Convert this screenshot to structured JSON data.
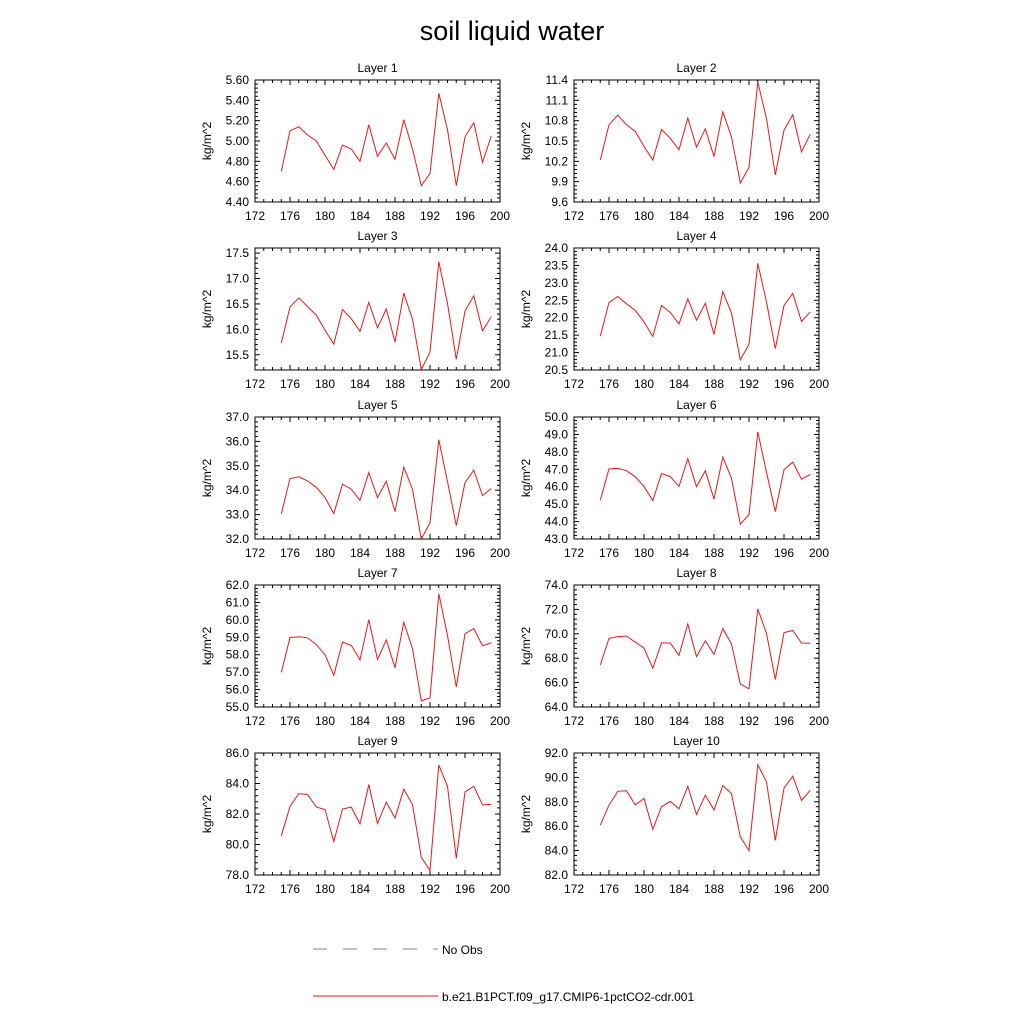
{
  "figure": {
    "title": "soil liquid water",
    "legend": [
      {
        "label": "No Obs",
        "color": "#7b7bd0",
        "style": "dashed"
      },
      {
        "label": "b.e21.B1PCT.f09_g17.CMIP6-1pctCO2-cdr.001",
        "color": "#e61919",
        "style": "solid"
      }
    ]
  },
  "chart_data": [
    {
      "type": "line",
      "title": "Layer 1",
      "ylabel": "kg/m^2",
      "xlim": [
        172,
        200
      ],
      "ylim": [
        4.4,
        5.6
      ],
      "xticks": [
        "172",
        "176",
        "180",
        "184",
        "188",
        "192",
        "196",
        "200"
      ],
      "yticks": [
        "4.40",
        "4.60",
        "4.80",
        "5.00",
        "5.20",
        "5.40",
        "5.60"
      ],
      "ytick_values": [
        4.4,
        4.6,
        4.8,
        5.0,
        5.2,
        5.4,
        5.6
      ],
      "x": [
        175,
        176,
        177,
        178,
        179,
        180,
        181,
        182,
        183,
        184,
        185,
        186,
        187,
        188,
        189,
        190,
        191,
        192,
        193,
        194,
        195,
        196,
        197,
        198,
        199
      ],
      "series": [
        {
          "name": "b.e21.B1PCT.f09_g17.CMIP6-1pctCO2-cdr.001",
          "values": [
            4.7,
            5.1,
            5.14,
            5.06,
            5.0,
            4.86,
            4.72,
            4.96,
            4.92,
            4.8,
            5.16,
            4.85,
            4.98,
            4.82,
            5.21,
            4.92,
            4.56,
            4.68,
            5.47,
            5.11,
            4.56,
            5.04,
            5.18,
            4.79,
            5.05
          ]
        }
      ]
    },
    {
      "type": "line",
      "title": "Layer 2",
      "ylabel": "kg/m^2",
      "xlim": [
        172,
        200
      ],
      "ylim": [
        9.6,
        11.4
      ],
      "xticks": [
        "172",
        "176",
        "180",
        "184",
        "188",
        "192",
        "196",
        "200"
      ],
      "yticks": [
        "9.6",
        "9.9",
        "10.2",
        "10.5",
        "10.8",
        "11.1",
        "11.4"
      ],
      "ytick_values": [
        9.6,
        9.9,
        10.2,
        10.5,
        10.8,
        11.1,
        11.4
      ],
      "x": [
        175,
        176,
        177,
        178,
        179,
        180,
        181,
        182,
        183,
        184,
        185,
        186,
        187,
        188,
        189,
        190,
        191,
        192,
        193,
        194,
        195,
        196,
        197,
        198,
        199
      ],
      "series": [
        {
          "name": "b.e21.B1PCT.f09_g17.CMIP6-1pctCO2-cdr.001",
          "values": [
            10.22,
            10.74,
            10.88,
            10.74,
            10.64,
            10.42,
            10.22,
            10.67,
            10.54,
            10.37,
            10.84,
            10.41,
            10.68,
            10.27,
            10.93,
            10.56,
            9.88,
            10.11,
            11.37,
            10.83,
            10.0,
            10.66,
            10.89,
            10.34,
            10.6
          ]
        }
      ]
    },
    {
      "type": "line",
      "title": "Layer 3",
      "ylabel": "kg/m^2",
      "xlim": [
        172,
        200
      ],
      "ylim": [
        15.2,
        17.6
      ],
      "xticks": [
        "172",
        "176",
        "180",
        "184",
        "188",
        "192",
        "196",
        "200"
      ],
      "yticks": [
        "15.5",
        "16.0",
        "16.5",
        "17.0",
        "17.5"
      ],
      "ytick_values": [
        15.5,
        16.0,
        16.5,
        17.0,
        17.5
      ],
      "x": [
        175,
        176,
        177,
        178,
        179,
        180,
        181,
        182,
        183,
        184,
        185,
        186,
        187,
        188,
        189,
        190,
        191,
        192,
        193,
        194,
        195,
        196,
        197,
        198,
        199
      ],
      "series": [
        {
          "name": "b.e21.B1PCT.f09_g17.CMIP6-1pctCO2-cdr.001",
          "values": [
            15.73,
            16.44,
            16.62,
            16.45,
            16.28,
            15.98,
            15.71,
            16.39,
            16.21,
            15.96,
            16.53,
            16.03,
            16.4,
            15.75,
            16.71,
            16.2,
            15.21,
            15.55,
            17.33,
            16.51,
            15.41,
            16.36,
            16.66,
            15.97,
            16.25
          ]
        }
      ]
    },
    {
      "type": "line",
      "title": "Layer 4",
      "ylabel": "kg/m^2",
      "xlim": [
        172,
        200
      ],
      "ylim": [
        20.5,
        24.0
      ],
      "xticks": [
        "172",
        "176",
        "180",
        "184",
        "188",
        "192",
        "196",
        "200"
      ],
      "yticks": [
        "20.5",
        "21.0",
        "21.5",
        "22.0",
        "22.5",
        "23.0",
        "23.5",
        "24.0"
      ],
      "ytick_values": [
        20.5,
        21.0,
        21.5,
        22.0,
        22.5,
        23.0,
        23.5,
        24.0
      ],
      "x": [
        175,
        176,
        177,
        178,
        179,
        180,
        181,
        182,
        183,
        184,
        185,
        186,
        187,
        188,
        189,
        190,
        191,
        192,
        193,
        194,
        195,
        196,
        197,
        198,
        199
      ],
      "series": [
        {
          "name": "b.e21.B1PCT.f09_g17.CMIP6-1pctCO2-cdr.001",
          "values": [
            21.47,
            22.44,
            22.61,
            22.4,
            22.21,
            21.88,
            21.46,
            22.35,
            22.15,
            21.82,
            22.54,
            21.93,
            22.41,
            21.52,
            22.75,
            22.13,
            20.79,
            21.24,
            23.56,
            22.45,
            21.11,
            22.35,
            22.7,
            21.89,
            22.17
          ]
        }
      ]
    },
    {
      "type": "line",
      "title": "Layer 5",
      "ylabel": "kg/m^2",
      "xlim": [
        172,
        200
      ],
      "ylim": [
        32.0,
        37.0
      ],
      "xticks": [
        "172",
        "176",
        "180",
        "184",
        "188",
        "192",
        "196",
        "200"
      ],
      "yticks": [
        "32.0",
        "33.0",
        "34.0",
        "35.0",
        "36.0",
        "37.0"
      ],
      "ytick_values": [
        32,
        33,
        34,
        35,
        36,
        37
      ],
      "x": [
        175,
        176,
        177,
        178,
        179,
        180,
        181,
        182,
        183,
        184,
        185,
        186,
        187,
        188,
        189,
        190,
        191,
        192,
        193,
        194,
        195,
        196,
        197,
        198,
        199
      ],
      "series": [
        {
          "name": "b.e21.B1PCT.f09_g17.CMIP6-1pctCO2-cdr.001",
          "values": [
            33.03,
            34.48,
            34.55,
            34.38,
            34.12,
            33.7,
            33.04,
            34.25,
            34.04,
            33.58,
            34.72,
            33.7,
            34.37,
            33.12,
            34.95,
            34.03,
            32.0,
            32.67,
            36.07,
            34.35,
            32.55,
            34.31,
            34.82,
            33.78,
            34.07
          ]
        }
      ]
    },
    {
      "type": "line",
      "title": "Layer 6",
      "ylabel": "kg/m^2",
      "xlim": [
        172,
        200
      ],
      "ylim": [
        43.0,
        50.0
      ],
      "xticks": [
        "172",
        "176",
        "180",
        "184",
        "188",
        "192",
        "196",
        "200"
      ],
      "yticks": [
        "43.0",
        "44.0",
        "45.0",
        "46.0",
        "47.0",
        "48.0",
        "49.0",
        "50.0"
      ],
      "ytick_values": [
        43,
        44,
        45,
        46,
        47,
        48,
        49,
        50
      ],
      "x": [
        175,
        176,
        177,
        178,
        179,
        180,
        181,
        182,
        183,
        184,
        185,
        186,
        187,
        188,
        189,
        190,
        191,
        192,
        193,
        194,
        195,
        196,
        197,
        198,
        199
      ],
      "series": [
        {
          "name": "b.e21.B1PCT.f09_g17.CMIP6-1pctCO2-cdr.001",
          "values": [
            45.22,
            47.02,
            47.05,
            46.92,
            46.57,
            46.01,
            45.2,
            46.76,
            46.58,
            46.02,
            47.61,
            46.0,
            46.92,
            45.29,
            47.7,
            46.48,
            43.85,
            44.4,
            49.15,
            46.82,
            44.57,
            46.97,
            47.41,
            46.43,
            46.7
          ]
        }
      ]
    },
    {
      "type": "line",
      "title": "Layer 7",
      "ylabel": "kg/m^2",
      "xlim": [
        172,
        200
      ],
      "ylim": [
        55.0,
        62.0
      ],
      "xticks": [
        "172",
        "176",
        "180",
        "184",
        "188",
        "192",
        "196",
        "200"
      ],
      "yticks": [
        "55.0",
        "56.0",
        "57.0",
        "58.0",
        "59.0",
        "60.0",
        "61.0",
        "62.0"
      ],
      "ytick_values": [
        55,
        56,
        57,
        58,
        59,
        60,
        61,
        62
      ],
      "x": [
        175,
        176,
        177,
        178,
        179,
        180,
        181,
        182,
        183,
        184,
        185,
        186,
        187,
        188,
        189,
        190,
        191,
        192,
        193,
        194,
        195,
        196,
        197,
        198,
        199
      ],
      "series": [
        {
          "name": "b.e21.B1PCT.f09_g17.CMIP6-1pctCO2-cdr.001",
          "values": [
            56.98,
            58.99,
            59.03,
            58.97,
            58.58,
            58.0,
            56.82,
            58.73,
            58.53,
            57.71,
            60.01,
            57.73,
            58.85,
            57.25,
            59.86,
            58.35,
            55.36,
            55.52,
            61.5,
            59.1,
            56.14,
            59.2,
            59.5,
            58.52,
            58.68
          ]
        }
      ]
    },
    {
      "type": "line",
      "title": "Layer 8",
      "ylabel": "kg/m^2",
      "xlim": [
        172,
        200
      ],
      "ylim": [
        64.0,
        74.0
      ],
      "xticks": [
        "172",
        "176",
        "180",
        "184",
        "188",
        "192",
        "196",
        "200"
      ],
      "yticks": [
        "64.0",
        "66.0",
        "68.0",
        "70.0",
        "72.0",
        "74.0"
      ],
      "ytick_values": [
        64,
        66,
        68,
        70,
        72,
        74
      ],
      "x": [
        175,
        176,
        177,
        178,
        179,
        180,
        181,
        182,
        183,
        184,
        185,
        186,
        187,
        188,
        189,
        190,
        191,
        192,
        193,
        194,
        195,
        196,
        197,
        198,
        199
      ],
      "series": [
        {
          "name": "b.e21.B1PCT.f09_g17.CMIP6-1pctCO2-cdr.001",
          "values": [
            67.44,
            69.62,
            69.77,
            69.81,
            69.31,
            68.83,
            67.17,
            69.26,
            69.24,
            68.23,
            70.8,
            68.12,
            69.43,
            68.31,
            70.43,
            69.16,
            65.89,
            65.49,
            72.04,
            70.04,
            66.25,
            70.1,
            70.27,
            69.25,
            69.22
          ]
        }
      ]
    },
    {
      "type": "line",
      "title": "Layer 9",
      "ylabel": "kg/m^2",
      "xlim": [
        172,
        200
      ],
      "ylim": [
        78.0,
        86.0
      ],
      "xticks": [
        "172",
        "176",
        "180",
        "184",
        "188",
        "192",
        "196",
        "200"
      ],
      "yticks": [
        "78.0",
        "80.0",
        "82.0",
        "84.0",
        "86.0"
      ],
      "ytick_values": [
        78,
        80,
        82,
        84,
        86
      ],
      "x": [
        175,
        176,
        177,
        178,
        179,
        180,
        181,
        182,
        183,
        184,
        185,
        186,
        187,
        188,
        189,
        190,
        191,
        192,
        193,
        194,
        195,
        196,
        197,
        198,
        199
      ],
      "series": [
        {
          "name": "b.e21.B1PCT.f09_g17.CMIP6-1pctCO2-cdr.001",
          "values": [
            80.57,
            82.49,
            83.34,
            83.28,
            82.46,
            82.29,
            80.19,
            82.33,
            82.45,
            81.36,
            83.93,
            81.38,
            82.78,
            81.74,
            83.63,
            82.62,
            79.16,
            78.3,
            85.22,
            83.81,
            79.09,
            83.45,
            83.82,
            82.6,
            82.63
          ]
        }
      ]
    },
    {
      "type": "line",
      "title": "Layer 10",
      "ylabel": "kg/m^2",
      "xlim": [
        172,
        200
      ],
      "ylim": [
        82.0,
        92.0
      ],
      "xticks": [
        "172",
        "176",
        "180",
        "184",
        "188",
        "192",
        "196",
        "200"
      ],
      "yticks": [
        "82.0",
        "84.0",
        "86.0",
        "88.0",
        "90.0",
        "92.0"
      ],
      "ytick_values": [
        82,
        84,
        86,
        88,
        90,
        92
      ],
      "x": [
        175,
        176,
        177,
        178,
        179,
        180,
        181,
        182,
        183,
        184,
        185,
        186,
        187,
        188,
        189,
        190,
        191,
        192,
        193,
        194,
        195,
        196,
        197,
        198,
        199
      ],
      "series": [
        {
          "name": "b.e21.B1PCT.f09_g17.CMIP6-1pctCO2-cdr.001",
          "values": [
            86.08,
            87.73,
            88.86,
            88.9,
            87.75,
            88.27,
            85.75,
            87.6,
            88.03,
            87.43,
            89.26,
            86.96,
            88.54,
            87.34,
            89.33,
            88.67,
            85.13,
            84.0,
            91.03,
            89.63,
            84.84,
            89.12,
            90.11,
            88.11,
            88.95
          ]
        }
      ]
    }
  ]
}
